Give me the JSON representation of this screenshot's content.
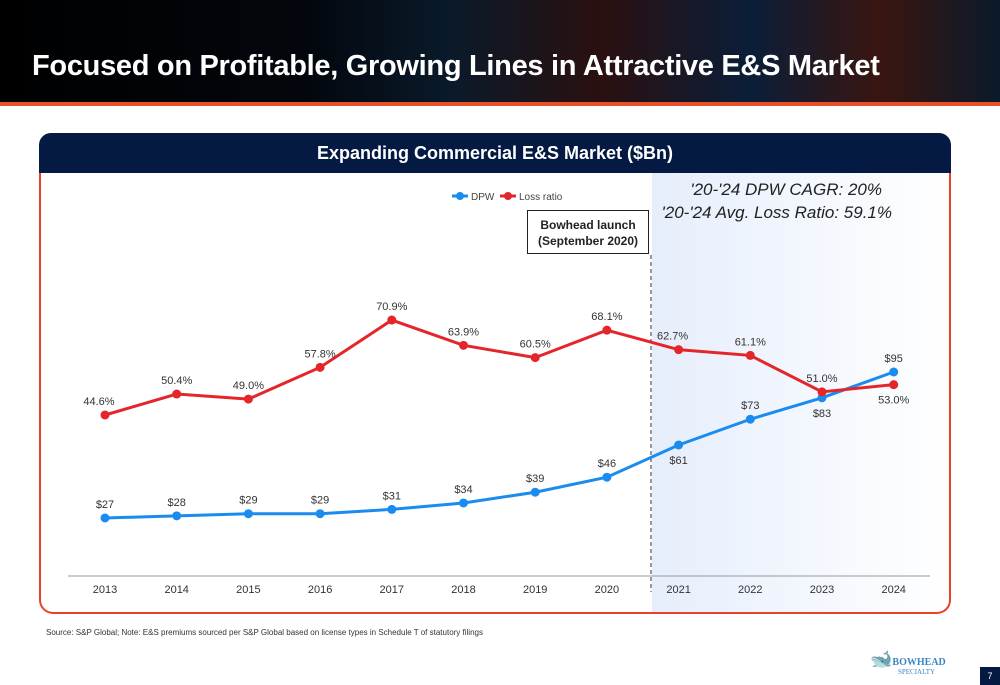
{
  "slide": {
    "title": "Focused on Profitable, Growing Lines in Attractive E&S Market",
    "page_number": "7",
    "source": "Source: S&P Global; Note: E&S premiums sourced per S&P Global based on license types in Schedule T of statutory filings",
    "logo": "BOWHEAD",
    "logo_sub": "SPECIALTY"
  },
  "chart_data": {
    "type": "line",
    "title": "Expanding Commercial E&S Market ($Bn)",
    "categories": [
      "2013",
      "2014",
      "2015",
      "2016",
      "2017",
      "2018",
      "2019",
      "2020",
      "2021",
      "2022",
      "2023",
      "2024"
    ],
    "series": [
      {
        "name": "DPW",
        "color": "#1a8cf0",
        "values": [
          27,
          28,
          29,
          29,
          31,
          34,
          39,
          46,
          61,
          73,
          83,
          95
        ],
        "labels": [
          "$27",
          "$28",
          "$29",
          "$29",
          "$31",
          "$34",
          "$39",
          "$46",
          "$61",
          "$73",
          "$83",
          "$95"
        ]
      },
      {
        "name": "Loss ratio",
        "color": "#e4262a",
        "values": [
          44.6,
          50.4,
          49.0,
          57.8,
          70.9,
          63.9,
          60.5,
          68.1,
          62.7,
          61.1,
          51.0,
          53.0
        ],
        "labels": [
          "44.6%",
          "50.4%",
          "49.0%",
          "57.8%",
          "70.9%",
          "63.9%",
          "60.5%",
          "68.1%",
          "62.7%",
          "61.1%",
          "51.0%",
          "53.0%"
        ]
      }
    ],
    "legend": "top-center",
    "annotations": {
      "launch": [
        "Bowhead launch",
        "(September 2020)"
      ],
      "cagr": "'20-'24 DPW CAGR: 20%",
      "avg_loss": "'20-'24 Avg. Loss Ratio: 59.1%"
    },
    "grid": false
  }
}
